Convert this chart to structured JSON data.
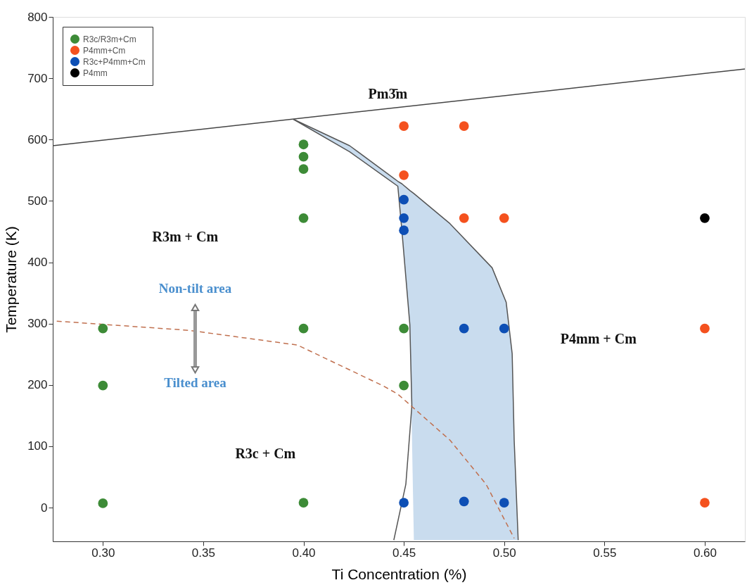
{
  "chart_data": {
    "type": "scatter",
    "xlabel": "Ti Concentration (%)",
    "ylabel": "Temperature (K)",
    "xlim": [
      0.275,
      0.62
    ],
    "ylim": [
      -55,
      800
    ],
    "xticks": [
      {
        "value": 0.3,
        "label": "0.30"
      },
      {
        "value": 0.35,
        "label": "0.35"
      },
      {
        "value": 0.4,
        "label": "0.40"
      },
      {
        "value": 0.45,
        "label": "0.45"
      },
      {
        "value": 0.5,
        "label": "0.50"
      },
      {
        "value": 0.55,
        "label": "0.55"
      },
      {
        "value": 0.6,
        "label": "0.60"
      }
    ],
    "yticks": [
      0,
      100,
      200,
      300,
      400,
      500,
      600,
      700,
      800
    ],
    "grid": false,
    "legend": "top left",
    "marker": "circle",
    "series": [
      {
        "type": "line",
        "color": "#444444",
        "line_style": "solid",
        "marker": "none",
        "x": [
          0.275,
          0.62
        ],
        "values": [
          590,
          715
        ]
      },
      {
        "type": "line",
        "color": "#555555",
        "line_style": "solid",
        "marker": "none",
        "x": [
          0.395,
          0.423,
          0.447,
          0.449,
          0.453,
          0.455,
          0.473,
          0.494,
          0.501,
          0.504,
          0.505,
          0.507
        ],
        "values": [
          633,
          590,
          532,
          528,
          517,
          512,
          463,
          391,
          335,
          251,
          110,
          -53
        ],
        "lower": [
          633,
          580,
          524,
          453,
          298,
          -53,
          -53,
          -53,
          -53,
          -53,
          -53,
          -53
        ],
        "upper": [
          633,
          590,
          532,
          528,
          517,
          512,
          463,
          391,
          335,
          251,
          110,
          -53
        ]
      },
      {
        "type": "line",
        "color": "#555555",
        "line_style": "solid",
        "marker": "none",
        "x": [
          0.395,
          0.423,
          0.447,
          0.449,
          0.453,
          0.454,
          0.451,
          0.445
        ],
        "values": [
          633,
          580,
          524,
          453,
          298,
          166,
          38,
          -53
        ]
      },
      {
        "type": "line",
        "color": "#c0704f",
        "line_style": "dashed",
        "marker": "none",
        "x": [
          0.277,
          0.343,
          0.397,
          0.44,
          0.447,
          0.473,
          0.491,
          0.505
        ],
        "values": [
          304,
          289,
          265,
          198,
          185,
          110,
          38,
          -50
        ]
      },
      {
        "name": "R3c/R3m+Cm",
        "color": "#3d8b37",
        "x": [
          0.3,
          0.3,
          0.3,
          0.4,
          0.4,
          0.4,
          0.4,
          0.4,
          0.4,
          0.45,
          0.45
        ],
        "values": [
          292,
          199,
          7,
          592,
          572,
          552,
          472,
          292,
          8,
          292,
          199
        ]
      },
      {
        "name": "P4mm+Cm",
        "color": "#f4511e",
        "x": [
          0.45,
          0.48,
          0.45,
          0.48,
          0.5,
          0.6,
          0.6
        ],
        "values": [
          622,
          622,
          542,
          472,
          472,
          292,
          8
        ]
      },
      {
        "name": "R3c+P4mm+Cm",
        "color": "#0d4fb5",
        "x": [
          0.45,
          0.45,
          0.45,
          0.48,
          0.5,
          0.45,
          0.48,
          0.5
        ],
        "values": [
          502,
          472,
          452,
          292,
          292,
          8,
          10,
          8
        ]
      },
      {
        "name": "P4mm",
        "color": "#000000",
        "x": [
          0.6
        ],
        "values": [
          472
        ]
      }
    ],
    "annotations": [
      "Pm3̄m",
      "R3m + Cm",
      "P4mm + Cm",
      "R3c + Cm",
      "Non-tilt area",
      "Tilted area"
    ]
  }
}
